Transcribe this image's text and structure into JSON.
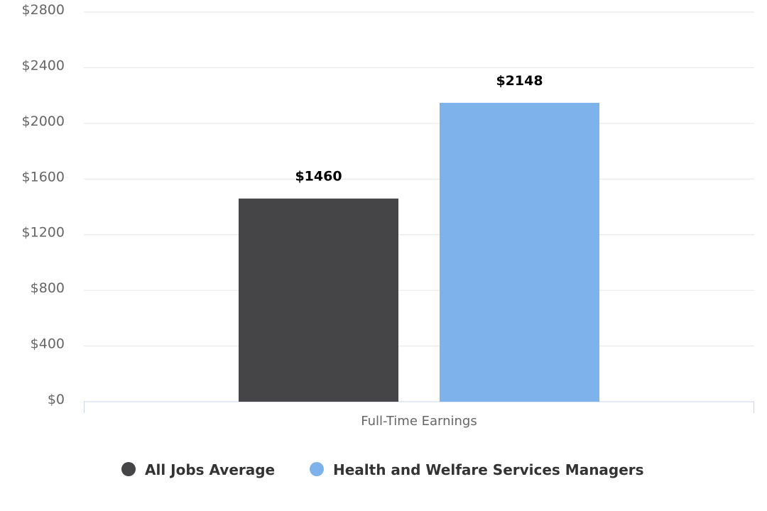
{
  "chart_data": {
    "type": "bar",
    "categories": [
      "Full-Time Earnings"
    ],
    "series": [
      {
        "name": "All Jobs Average",
        "values": [
          1460
        ],
        "color": "#454548",
        "label": "$1460"
      },
      {
        "name": "Health and Welfare Services Managers",
        "values": [
          2148
        ],
        "color": "#7db3ea",
        "label": "$2148"
      }
    ],
    "yticks": [
      {
        "value": 0,
        "label": "$0"
      },
      {
        "value": 400,
        "label": "$400"
      },
      {
        "value": 800,
        "label": "$800"
      },
      {
        "value": 1200,
        "label": "$1200"
      },
      {
        "value": 1600,
        "label": "$1600"
      },
      {
        "value": 2000,
        "label": "$2000"
      },
      {
        "value": 2400,
        "label": "$2400"
      },
      {
        "value": 2800,
        "label": "$2800"
      }
    ],
    "ylim": [
      0,
      2800
    ],
    "grid": true,
    "legend_position": "bottom-center",
    "title": "",
    "xlabel": "",
    "ylabel": ""
  }
}
